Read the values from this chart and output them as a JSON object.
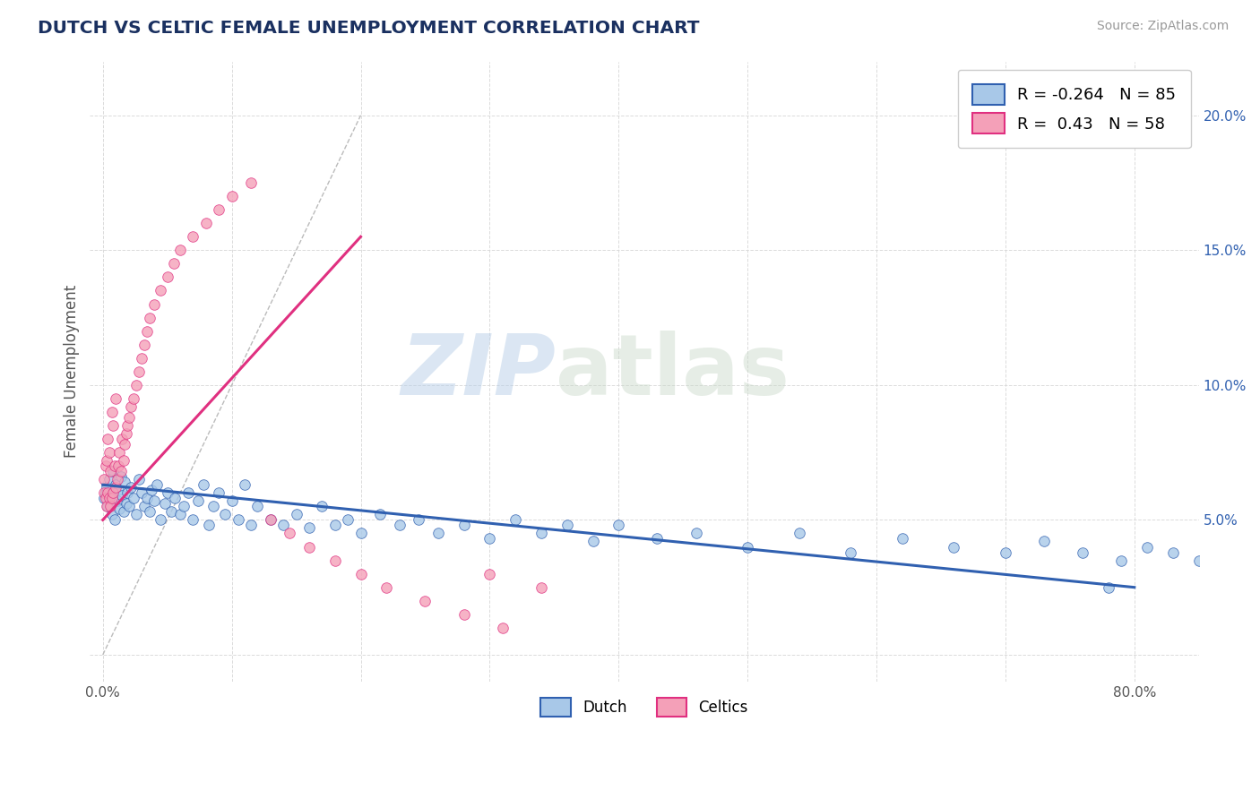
{
  "title": "DUTCH VS CELTIC FEMALE UNEMPLOYMENT CORRELATION CHART",
  "source_text": "Source: ZipAtlas.com",
  "watermark_part1": "ZIP",
  "watermark_part2": "atlas",
  "ylabel": "Female Unemployment",
  "x_ticks": [
    0.0,
    0.1,
    0.2,
    0.3,
    0.4,
    0.5,
    0.6,
    0.7,
    0.8
  ],
  "x_tick_labels": [
    "0.0%",
    "",
    "",
    "",
    "",
    "",
    "",
    "",
    "80.0%"
  ],
  "y_ticks": [
    0.0,
    0.05,
    0.1,
    0.15,
    0.2
  ],
  "y_tick_labels": [
    "",
    "5.0%",
    "10.0%",
    "15.0%",
    "20.0%"
  ],
  "xlim": [
    -0.01,
    0.85
  ],
  "ylim": [
    -0.01,
    0.22
  ],
  "dutch_color": "#a8c8e8",
  "celtic_color": "#f4a0b8",
  "dutch_line_color": "#3060b0",
  "celtic_line_color": "#e03080",
  "title_color": "#1a3060",
  "source_color": "#999999",
  "grid_color": "#d8d8d8",
  "r_dutch": -0.264,
  "n_dutch": 85,
  "r_celtic": 0.43,
  "n_celtic": 58,
  "dutch_scatter_x": [
    0.001,
    0.002,
    0.003,
    0.004,
    0.005,
    0.006,
    0.007,
    0.008,
    0.009,
    0.01,
    0.011,
    0.012,
    0.013,
    0.014,
    0.015,
    0.016,
    0.017,
    0.018,
    0.019,
    0.02,
    0.022,
    0.024,
    0.026,
    0.028,
    0.03,
    0.032,
    0.034,
    0.036,
    0.038,
    0.04,
    0.042,
    0.045,
    0.048,
    0.05,
    0.053,
    0.056,
    0.06,
    0.063,
    0.066,
    0.07,
    0.074,
    0.078,
    0.082,
    0.086,
    0.09,
    0.095,
    0.1,
    0.105,
    0.11,
    0.115,
    0.12,
    0.13,
    0.14,
    0.15,
    0.16,
    0.17,
    0.18,
    0.19,
    0.2,
    0.215,
    0.23,
    0.245,
    0.26,
    0.28,
    0.3,
    0.32,
    0.34,
    0.36,
    0.38,
    0.4,
    0.43,
    0.46,
    0.5,
    0.54,
    0.58,
    0.62,
    0.66,
    0.7,
    0.73,
    0.76,
    0.79,
    0.81,
    0.83,
    0.85,
    0.78
  ],
  "dutch_scatter_y": [
    0.058,
    0.06,
    0.062,
    0.055,
    0.065,
    0.058,
    0.052,
    0.068,
    0.05,
    0.063,
    0.057,
    0.061,
    0.054,
    0.066,
    0.059,
    0.053,
    0.064,
    0.056,
    0.06,
    0.055,
    0.062,
    0.058,
    0.052,
    0.065,
    0.06,
    0.055,
    0.058,
    0.053,
    0.061,
    0.057,
    0.063,
    0.05,
    0.056,
    0.06,
    0.053,
    0.058,
    0.052,
    0.055,
    0.06,
    0.05,
    0.057,
    0.063,
    0.048,
    0.055,
    0.06,
    0.052,
    0.057,
    0.05,
    0.063,
    0.048,
    0.055,
    0.05,
    0.048,
    0.052,
    0.047,
    0.055,
    0.048,
    0.05,
    0.045,
    0.052,
    0.048,
    0.05,
    0.045,
    0.048,
    0.043,
    0.05,
    0.045,
    0.048,
    0.042,
    0.048,
    0.043,
    0.045,
    0.04,
    0.045,
    0.038,
    0.043,
    0.04,
    0.038,
    0.042,
    0.038,
    0.035,
    0.04,
    0.038,
    0.035,
    0.025
  ],
  "celtic_scatter_x": [
    0.001,
    0.001,
    0.002,
    0.002,
    0.003,
    0.003,
    0.004,
    0.004,
    0.005,
    0.005,
    0.006,
    0.006,
    0.007,
    0.007,
    0.008,
    0.008,
    0.009,
    0.01,
    0.01,
    0.011,
    0.012,
    0.013,
    0.014,
    0.015,
    0.016,
    0.017,
    0.018,
    0.019,
    0.02,
    0.022,
    0.024,
    0.026,
    0.028,
    0.03,
    0.032,
    0.034,
    0.036,
    0.04,
    0.045,
    0.05,
    0.055,
    0.06,
    0.07,
    0.08,
    0.09,
    0.1,
    0.115,
    0.13,
    0.145,
    0.16,
    0.18,
    0.2,
    0.22,
    0.25,
    0.28,
    0.31,
    0.34,
    0.3
  ],
  "celtic_scatter_y": [
    0.06,
    0.065,
    0.058,
    0.07,
    0.055,
    0.072,
    0.06,
    0.08,
    0.058,
    0.075,
    0.055,
    0.068,
    0.058,
    0.09,
    0.06,
    0.085,
    0.07,
    0.062,
    0.095,
    0.065,
    0.07,
    0.075,
    0.068,
    0.08,
    0.072,
    0.078,
    0.082,
    0.085,
    0.088,
    0.092,
    0.095,
    0.1,
    0.105,
    0.11,
    0.115,
    0.12,
    0.125,
    0.13,
    0.135,
    0.14,
    0.145,
    0.15,
    0.155,
    0.16,
    0.165,
    0.17,
    0.175,
    0.05,
    0.045,
    0.04,
    0.035,
    0.03,
    0.025,
    0.02,
    0.015,
    0.01,
    0.025,
    0.03
  ]
}
